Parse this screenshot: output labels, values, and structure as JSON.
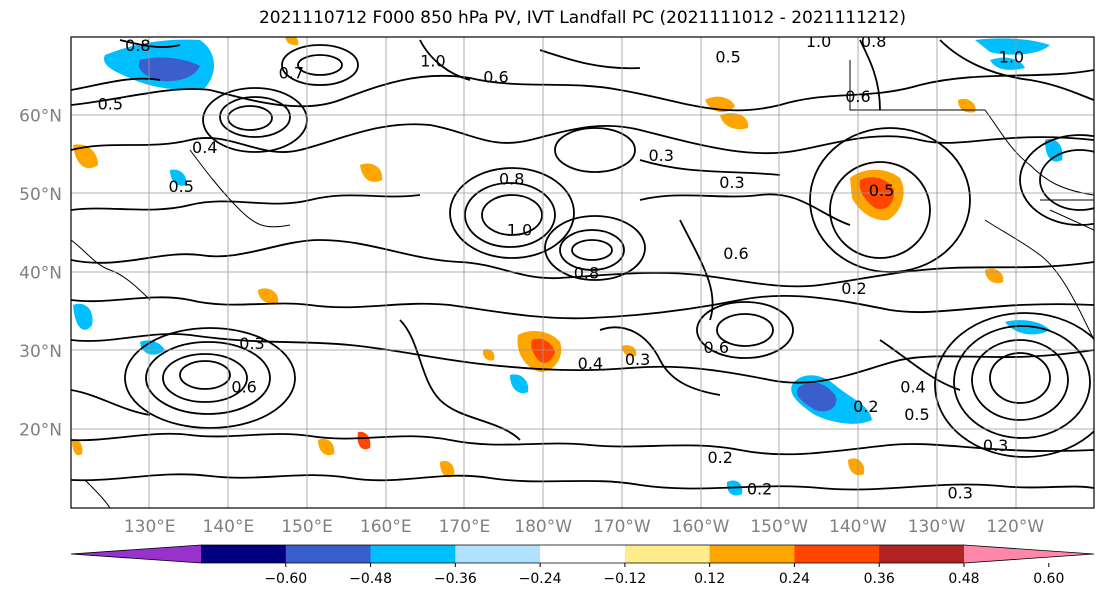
{
  "title": "2021110712 F000 850 hPa PV, IVT Landfall PC (2021111012 - 2021111212)",
  "map": {
    "lat_labels": [
      "60°N",
      "50°N",
      "40°N",
      "30°N",
      "20°N"
    ],
    "lon_labels": [
      "130°E",
      "140°E",
      "150°E",
      "160°E",
      "170°E",
      "180°W",
      "170°W",
      "160°W",
      "150°W",
      "140°W",
      "130°W",
      "120°W"
    ],
    "contour_labels": [
      {
        "text": "0.8",
        "lon": 128.5,
        "lat": 69
      },
      {
        "text": "0.5",
        "lon": 125,
        "lat": 61.5
      },
      {
        "text": "0.7",
        "lon": 148,
        "lat": 65.5
      },
      {
        "text": "1.0",
        "lon": 166,
        "lat": 67
      },
      {
        "text": "0.6",
        "lon": 174,
        "lat": 65
      },
      {
        "text": "0.4",
        "lon": 137,
        "lat": 56
      },
      {
        "text": "0.5",
        "lon": 134,
        "lat": 51
      },
      {
        "text": "0.5",
        "lon": 203.5,
        "lat": 67.5
      },
      {
        "text": "1.0",
        "lon": 215,
        "lat": 69.5
      },
      {
        "text": "0.8",
        "lon": 222,
        "lat": 69.5
      },
      {
        "text": "1.0",
        "lon": 239.5,
        "lat": 67.5
      },
      {
        "text": "0.6",
        "lon": 220,
        "lat": 62.5
      },
      {
        "text": "0.3",
        "lon": 195,
        "lat": 55
      },
      {
        "text": "0.3",
        "lon": 204,
        "lat": 51.5
      },
      {
        "text": "0.5",
        "lon": 223,
        "lat": 50.5
      },
      {
        "text": "0.8",
        "lon": 176,
        "lat": 52
      },
      {
        "text": "1.0",
        "lon": 177,
        "lat": 45.5
      },
      {
        "text": "0.8",
        "lon": 185.5,
        "lat": 40
      },
      {
        "text": "0.6",
        "lon": 204.5,
        "lat": 42.5
      },
      {
        "text": "0.2",
        "lon": 219.5,
        "lat": 38
      },
      {
        "text": "0.4",
        "lon": 186,
        "lat": 28.5
      },
      {
        "text": "0.3",
        "lon": 192,
        "lat": 29
      },
      {
        "text": "0.6",
        "lon": 202,
        "lat": 30.5
      },
      {
        "text": "0.3",
        "lon": 143,
        "lat": 31
      },
      {
        "text": "0.6",
        "lon": 142,
        "lat": 25.5
      },
      {
        "text": "0.4",
        "lon": 227,
        "lat": 25.5
      },
      {
        "text": "0.5",
        "lon": 227.5,
        "lat": 22
      },
      {
        "text": "0.2",
        "lon": 221,
        "lat": 23
      },
      {
        "text": "0.2",
        "lon": 202.5,
        "lat": 16.5
      },
      {
        "text": "0.2",
        "lon": 207.5,
        "lat": 12.5
      },
      {
        "text": "0.3",
        "lon": 233,
        "lat": 12
      },
      {
        "text": "0.3",
        "lon": 237.5,
        "lat": 18
      }
    ]
  },
  "colorbar": {
    "tick_labels": [
      "−0.60",
      "−0.48",
      "−0.36",
      "−0.24",
      "−0.12",
      "0.12",
      "0.24",
      "0.36",
      "0.48",
      "0.60"
    ],
    "colors": [
      "#9932cc",
      "#000080",
      "#3a5fcd",
      "#00bfff",
      "#b0e2ff",
      "#ffffff",
      "#ffec8b",
      "#ffa500",
      "#ff4500",
      "#b22222",
      "#ff88aa"
    ]
  }
}
